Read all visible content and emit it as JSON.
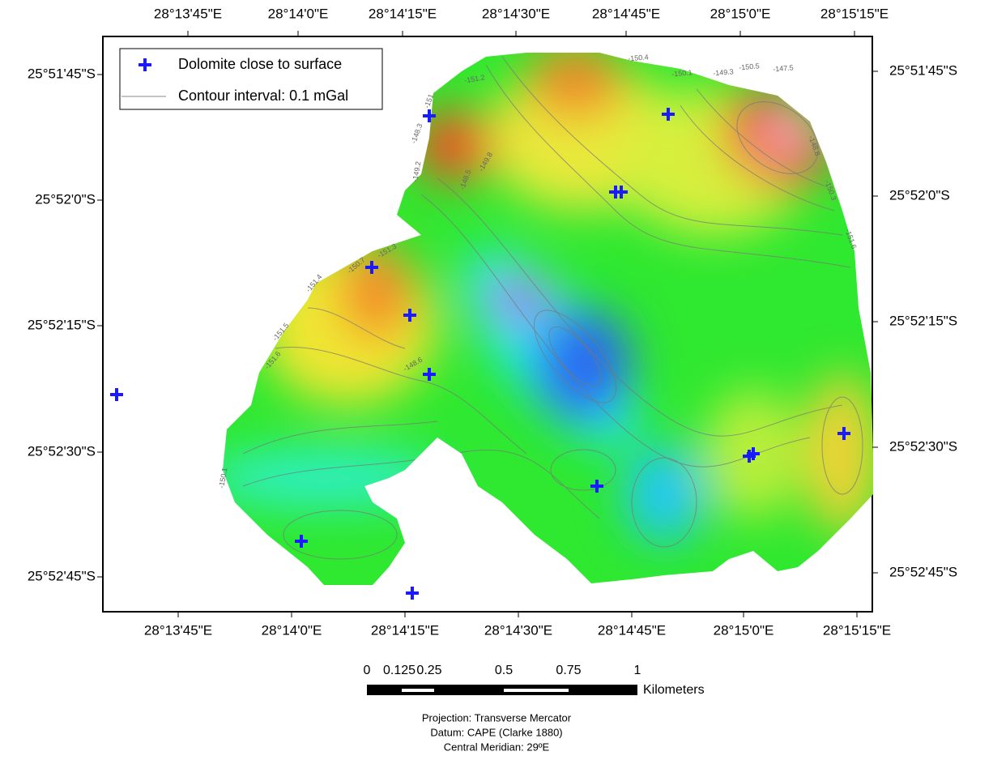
{
  "map": {
    "longitude_labels_top": [
      "28°13'45\"E",
      "28°14'0\"E",
      "28°14'15\"E",
      "28°14'30\"E",
      "28°14'45\"E",
      "28°15'0\"E",
      "28°15'15\"E"
    ],
    "longitude_labels_bottom": [
      "28°13'45\"E",
      "28°14'0\"E",
      "28°14'15\"E",
      "28°14'30\"E",
      "28°14'45\"E",
      "28°15'0\"E",
      "28°15'15\"E"
    ],
    "latitude_labels_left": [
      "25°51'45\"S",
      "25°52'0\"S",
      "25°52'15\"S",
      "25°52'30\"S",
      "25°52'45\"S"
    ],
    "latitude_labels_right": [
      "25°51'45\"S",
      "25°52'0\"S",
      "25°52'15\"S",
      "25°52'30\"S",
      "25°52'45\"S"
    ]
  },
  "legend": {
    "items": [
      "Dolomite close to surface",
      "Contour interval: 0.1 mGal"
    ]
  },
  "contour_labels": [
    "-151.2",
    "-150.4",
    "-150.1",
    "-149.3",
    "-150.5",
    "-147.5",
    "-151",
    "-148.3",
    "-149.2",
    "-148.5",
    "-150.7",
    "-151.3",
    "-151.4",
    "-151.5",
    "-151.6",
    "-148.8",
    "-150.3",
    "-151.6",
    "-150.1",
    "-148.6",
    "-149.8"
  ],
  "scale_bar": {
    "ticks": [
      "0",
      "0.125",
      "0.25",
      "0.5",
      "0.75",
      "1"
    ],
    "unit": "Kilometers"
  },
  "projection": [
    "Projection: Transverse Mercator",
    "Datum: CAPE (Clarke 1880)",
    "Central Meridian: 29ºE"
  ]
}
